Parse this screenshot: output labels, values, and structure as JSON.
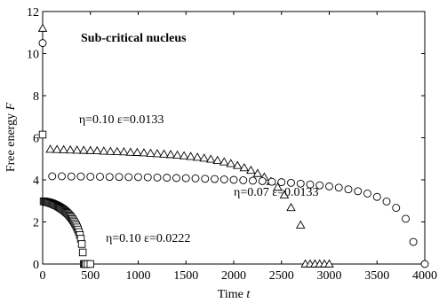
{
  "chart_data": {
    "type": "scatter",
    "title": "Sub-critical nucleus",
    "xlabel": "Time t",
    "ylabel": "Free energy F",
    "xlim": [
      0,
      4000
    ],
    "ylim": [
      0,
      12
    ],
    "xticks": [
      0,
      500,
      1000,
      1500,
      2000,
      2500,
      3000,
      3500,
      4000
    ],
    "yticks": [
      0,
      2,
      4,
      6,
      8,
      10,
      12
    ],
    "grid": false,
    "series": [
      {
        "name": "η=0.10 ε=0.0133",
        "marker": "triangle",
        "points": [
          [
            0,
            11.2
          ],
          [
            80,
            5.45
          ],
          [
            150,
            5.44
          ],
          [
            220,
            5.43
          ],
          [
            290,
            5.42
          ],
          [
            360,
            5.41
          ],
          [
            430,
            5.4
          ],
          [
            500,
            5.39
          ],
          [
            570,
            5.38
          ],
          [
            640,
            5.36
          ],
          [
            710,
            5.35
          ],
          [
            780,
            5.34
          ],
          [
            850,
            5.33
          ],
          [
            920,
            5.31
          ],
          [
            990,
            5.3
          ],
          [
            1060,
            5.28
          ],
          [
            1130,
            5.26
          ],
          [
            1200,
            5.24
          ],
          [
            1270,
            5.22
          ],
          [
            1340,
            5.2
          ],
          [
            1410,
            5.17
          ],
          [
            1480,
            5.14
          ],
          [
            1550,
            5.11
          ],
          [
            1620,
            5.07
          ],
          [
            1690,
            5.03
          ],
          [
            1760,
            4.98
          ],
          [
            1830,
            4.92
          ],
          [
            1900,
            4.85
          ],
          [
            1970,
            4.77
          ],
          [
            2040,
            4.68
          ],
          [
            2110,
            4.57
          ],
          [
            2180,
            4.45
          ],
          [
            2250,
            4.3
          ],
          [
            2320,
            4.13
          ],
          [
            2390,
            3.92
          ],
          [
            2460,
            3.65
          ],
          [
            2530,
            3.28
          ],
          [
            2600,
            2.68
          ],
          [
            2700,
            1.85
          ],
          [
            2750,
            0.0
          ],
          [
            2800,
            0.0
          ],
          [
            2850,
            0.0
          ],
          [
            2900,
            0.0
          ],
          [
            2950,
            0.0
          ],
          [
            3000,
            0.0
          ]
        ]
      },
      {
        "name": "η=0.07 ε=0.0133",
        "marker": "circle",
        "points": [
          [
            0,
            10.5
          ],
          [
            100,
            4.17
          ],
          [
            200,
            4.17
          ],
          [
            300,
            4.16
          ],
          [
            400,
            4.16
          ],
          [
            500,
            4.15
          ],
          [
            600,
            4.15
          ],
          [
            700,
            4.14
          ],
          [
            800,
            4.14
          ],
          [
            900,
            4.13
          ],
          [
            1000,
            4.13
          ],
          [
            1100,
            4.12
          ],
          [
            1200,
            4.11
          ],
          [
            1300,
            4.1
          ],
          [
            1400,
            4.09
          ],
          [
            1500,
            4.08
          ],
          [
            1600,
            4.07
          ],
          [
            1700,
            4.05
          ],
          [
            1800,
            4.04
          ],
          [
            1900,
            4.02
          ],
          [
            2000,
            4.0
          ],
          [
            2100,
            3.98
          ],
          [
            2200,
            3.96
          ],
          [
            2300,
            3.94
          ],
          [
            2400,
            3.91
          ],
          [
            2500,
            3.89
          ],
          [
            2600,
            3.86
          ],
          [
            2700,
            3.82
          ],
          [
            2800,
            3.78
          ],
          [
            2900,
            3.74
          ],
          [
            3000,
            3.69
          ],
          [
            3100,
            3.63
          ],
          [
            3200,
            3.55
          ],
          [
            3300,
            3.46
          ],
          [
            3400,
            3.35
          ],
          [
            3500,
            3.19
          ],
          [
            3600,
            2.97
          ],
          [
            3700,
            2.67
          ],
          [
            3800,
            2.15
          ],
          [
            3880,
            1.05
          ],
          [
            4000,
            0.0
          ]
        ]
      },
      {
        "name": "η=0.10 ε=0.0222",
        "marker": "square",
        "points": [
          [
            0,
            6.15
          ],
          [
            10,
            2.98
          ],
          [
            20,
            2.97
          ],
          [
            30,
            2.96
          ],
          [
            40,
            2.95
          ],
          [
            50,
            2.94
          ],
          [
            60,
            2.93
          ],
          [
            70,
            2.92
          ],
          [
            80,
            2.9
          ],
          [
            90,
            2.89
          ],
          [
            100,
            2.87
          ],
          [
            110,
            2.85
          ],
          [
            120,
            2.83
          ],
          [
            130,
            2.81
          ],
          [
            140,
            2.79
          ],
          [
            150,
            2.77
          ],
          [
            160,
            2.74
          ],
          [
            170,
            2.72
          ],
          [
            180,
            2.69
          ],
          [
            190,
            2.66
          ],
          [
            200,
            2.63
          ],
          [
            210,
            2.6
          ],
          [
            220,
            2.57
          ],
          [
            230,
            2.53
          ],
          [
            240,
            2.49
          ],
          [
            250,
            2.45
          ],
          [
            260,
            2.41
          ],
          [
            270,
            2.36
          ],
          [
            280,
            2.31
          ],
          [
            290,
            2.26
          ],
          [
            300,
            2.2
          ],
          [
            310,
            2.14
          ],
          [
            320,
            2.07
          ],
          [
            330,
            2.0
          ],
          [
            340,
            1.92
          ],
          [
            350,
            1.84
          ],
          [
            360,
            1.74
          ],
          [
            370,
            1.64
          ],
          [
            380,
            1.52
          ],
          [
            390,
            1.38
          ],
          [
            400,
            1.2
          ],
          [
            410,
            0.95
          ],
          [
            420,
            0.55
          ],
          [
            430,
            0.0
          ],
          [
            440,
            0.0
          ],
          [
            450,
            0.0
          ],
          [
            470,
            0.0
          ],
          [
            500,
            0.0
          ]
        ]
      }
    ],
    "annotations": [
      {
        "text": "η=0.10 ε=0.0133",
        "x": 380,
        "y": 6.7
      },
      {
        "text": "η=0.07 ε=0.0133",
        "x": 2000,
        "y": 3.25
      },
      {
        "text": "η=0.10 ε=0.0222",
        "x": 660,
        "y": 1.05
      }
    ]
  }
}
